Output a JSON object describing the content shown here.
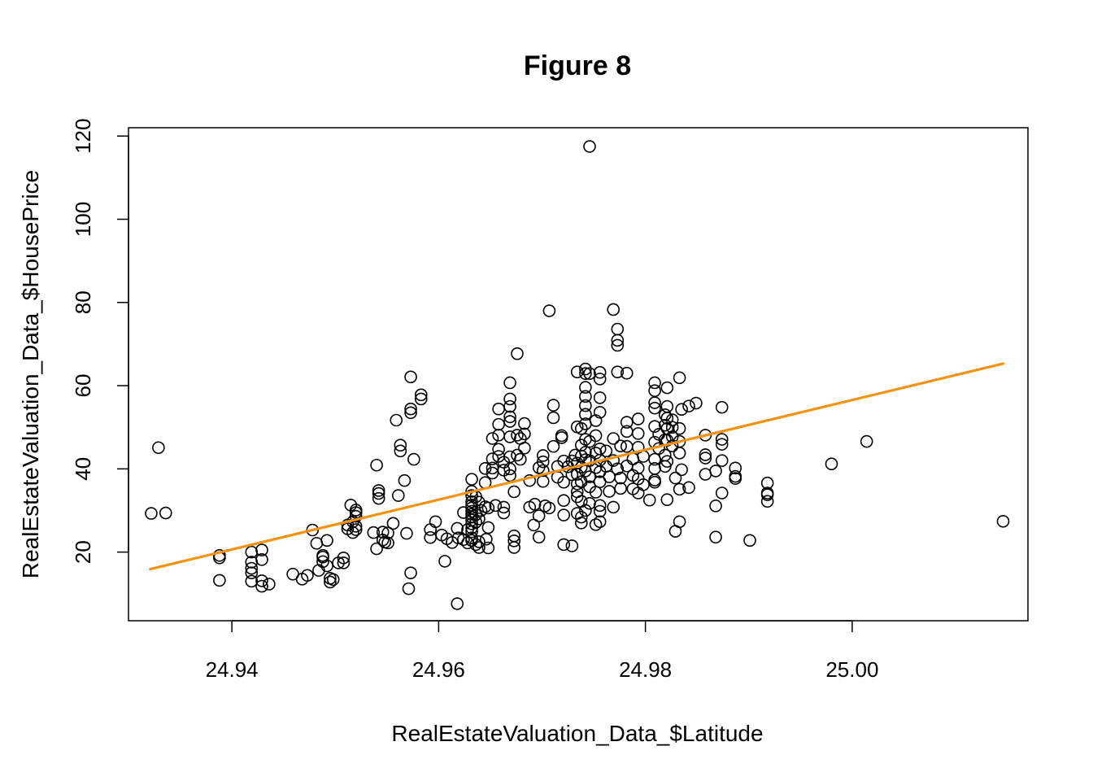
{
  "chart_data": {
    "type": "scatter",
    "title": "Figure 8",
    "xlabel": "RealEstateValuation_Data_$Latitude",
    "ylabel": "RealEstateValuation_Data_$HousePrice",
    "xlim": [
      24.93,
      25.017
    ],
    "ylim": [
      3.5,
      122
    ],
    "xticks": [
      24.94,
      24.96,
      24.98,
      25.0
    ],
    "xtick_labels": [
      "24.94",
      "24.96",
      "24.98",
      "25.00"
    ],
    "yticks": [
      20,
      40,
      60,
      80,
      100,
      120
    ],
    "ytick_labels": [
      "20",
      "40",
      "60",
      "80",
      "100",
      "120"
    ],
    "grid": false,
    "fit_line": {
      "x": [
        24.9321,
        25.0146
      ],
      "y": [
        15.9,
        65.3
      ],
      "color": "#f5930f"
    },
    "marker_color": "#000000",
    "points": [
      [
        24.9322,
        29.3
      ],
      [
        24.9329,
        45.1
      ],
      [
        24.9336,
        29.4
      ],
      [
        24.9388,
        19.2
      ],
      [
        24.9388,
        18.6
      ],
      [
        24.9388,
        13.2
      ],
      [
        24.9419,
        20.0
      ],
      [
        24.9419,
        17.6
      ],
      [
        24.9419,
        16.1
      ],
      [
        24.9419,
        15.0
      ],
      [
        24.9419,
        13.0
      ],
      [
        24.9429,
        20.5
      ],
      [
        24.9429,
        18.2
      ],
      [
        24.9429,
        13.1
      ],
      [
        24.9429,
        11.8
      ],
      [
        24.9436,
        12.3
      ],
      [
        24.9459,
        14.7
      ],
      [
        24.9468,
        13.5
      ],
      [
        24.9473,
        14.4
      ],
      [
        24.9478,
        25.3
      ],
      [
        24.9482,
        22.1
      ],
      [
        24.9484,
        15.6
      ],
      [
        24.9488,
        19.2
      ],
      [
        24.9488,
        18.8
      ],
      [
        24.9488,
        17.7
      ],
      [
        24.9492,
        22.8
      ],
      [
        24.9492,
        16.7
      ],
      [
        24.9495,
        13.7
      ],
      [
        24.9495,
        12.8
      ],
      [
        24.9498,
        13.4
      ],
      [
        24.9503,
        17.4
      ],
      [
        24.9508,
        18.6
      ],
      [
        24.9508,
        17.4
      ],
      [
        24.9512,
        26.5
      ],
      [
        24.9512,
        25.6
      ],
      [
        24.9515,
        31.3
      ],
      [
        24.9517,
        27.3
      ],
      [
        24.9517,
        24.7
      ],
      [
        24.952,
        30.1
      ],
      [
        24.952,
        29.5
      ],
      [
        24.952,
        28.6
      ],
      [
        24.952,
        26.2
      ],
      [
        24.952,
        25.4
      ],
      [
        24.9537,
        24.7
      ],
      [
        24.954,
        40.9
      ],
      [
        24.954,
        20.8
      ],
      [
        24.9542,
        34.8
      ],
      [
        24.9542,
        34.1
      ],
      [
        24.9542,
        32.9
      ],
      [
        24.9546,
        24.8
      ],
      [
        24.9546,
        22.9
      ],
      [
        24.9548,
        22.4
      ],
      [
        24.9551,
        22.2
      ],
      [
        24.9551,
        24.6
      ],
      [
        24.9556,
        26.9
      ],
      [
        24.9559,
        51.7
      ],
      [
        24.9561,
        33.6
      ],
      [
        24.9563,
        45.7
      ],
      [
        24.9563,
        44.3
      ],
      [
        24.9567,
        37.2
      ],
      [
        24.9569,
        24.5
      ],
      [
        24.9573,
        53.5
      ],
      [
        24.9573,
        54.4
      ],
      [
        24.9573,
        62.1
      ],
      [
        24.9573,
        15.0
      ],
      [
        24.9571,
        11.2
      ],
      [
        24.9576,
        42.3
      ],
      [
        24.9583,
        57.8
      ],
      [
        24.9583,
        56.8
      ],
      [
        24.9592,
        25.4
      ],
      [
        24.9592,
        23.5
      ],
      [
        24.9597,
        27.3
      ],
      [
        24.9603,
        24.1
      ],
      [
        24.9606,
        17.8
      ],
      [
        24.9608,
        23.2
      ],
      [
        24.9613,
        22.3
      ],
      [
        24.9618,
        25.7
      ],
      [
        24.9618,
        7.6
      ],
      [
        24.9619,
        23.4
      ],
      [
        24.9624,
        29.5
      ],
      [
        24.9624,
        23.0
      ],
      [
        24.9628,
        25.4
      ],
      [
        24.9628,
        22.2
      ],
      [
        24.9632,
        37.5
      ],
      [
        24.9632,
        34.6
      ],
      [
        24.9632,
        33.6
      ],
      [
        24.9632,
        32.1
      ],
      [
        24.9632,
        31.3
      ],
      [
        24.9632,
        30.6
      ],
      [
        24.9632,
        29.8
      ],
      [
        24.9632,
        29.1
      ],
      [
        24.9632,
        28.4
      ],
      [
        24.9632,
        27.7
      ],
      [
        24.9632,
        26.8
      ],
      [
        24.9632,
        25.8
      ],
      [
        24.9632,
        24.9
      ],
      [
        24.9632,
        23.4
      ],
      [
        24.9632,
        22.8
      ],
      [
        24.9636,
        33.3
      ],
      [
        24.9636,
        29.0
      ],
      [
        24.9636,
        27.2
      ],
      [
        24.9636,
        21.8
      ],
      [
        24.9639,
        32.0
      ],
      [
        24.9639,
        28.0
      ],
      [
        24.9639,
        22.5
      ],
      [
        24.9639,
        21.1
      ],
      [
        24.9641,
        30.0
      ],
      [
        24.9645,
        40.1
      ],
      [
        24.9645,
        36.7
      ],
      [
        24.9645,
        30.9
      ],
      [
        24.9648,
        30.6
      ],
      [
        24.9648,
        25.9
      ],
      [
        24.9646,
        23.1
      ],
      [
        24.9648,
        21.0
      ],
      [
        24.9652,
        47.3
      ],
      [
        24.9652,
        42.4
      ],
      [
        24.9652,
        40.2
      ],
      [
        24.9652,
        39.0
      ],
      [
        24.9655,
        31.2
      ],
      [
        24.9658,
        54.4
      ],
      [
        24.9658,
        50.7
      ],
      [
        24.9658,
        48.1
      ],
      [
        24.9658,
        44.7
      ],
      [
        24.9658,
        43.0
      ],
      [
        24.9663,
        41.6
      ],
      [
        24.9663,
        39.7
      ],
      [
        24.9663,
        30.8
      ],
      [
        24.9663,
        29.4
      ],
      [
        24.9669,
        60.7
      ],
      [
        24.9669,
        56.8
      ],
      [
        24.9669,
        55.0
      ],
      [
        24.9669,
        52.5
      ],
      [
        24.9669,
        51.4
      ],
      [
        24.9669,
        47.7
      ],
      [
        24.9669,
        42.9
      ],
      [
        24.9669,
        40.0
      ],
      [
        24.9669,
        38.4
      ],
      [
        24.9673,
        34.5
      ],
      [
        24.9673,
        23.9
      ],
      [
        24.9673,
        22.7
      ],
      [
        24.9673,
        21.1
      ],
      [
        24.9676,
        67.7
      ],
      [
        24.9676,
        48.1
      ],
      [
        24.9676,
        43.3
      ],
      [
        24.9679,
        47.3
      ],
      [
        24.9679,
        42.3
      ],
      [
        24.9683,
        50.9
      ],
      [
        24.9683,
        48.4
      ],
      [
        24.9683,
        45.0
      ],
      [
        24.9688,
        37.2
      ],
      [
        24.9688,
        30.8
      ],
      [
        24.9692,
        26.5
      ],
      [
        24.9693,
        31.5
      ],
      [
        24.9697,
        40.3
      ],
      [
        24.9697,
        28.7
      ],
      [
        24.9697,
        23.6
      ],
      [
        24.9701,
        43.2
      ],
      [
        24.9701,
        41.7
      ],
      [
        24.9701,
        39.6
      ],
      [
        24.9701,
        37.0
      ],
      [
        24.9703,
        31.1
      ],
      [
        24.9707,
        78.0
      ],
      [
        24.9707,
        30.6
      ],
      [
        24.9711,
        55.3
      ],
      [
        24.9711,
        52.3
      ],
      [
        24.9711,
        45.4
      ],
      [
        24.9715,
        40.6
      ],
      [
        24.9715,
        38.0
      ],
      [
        24.9719,
        48.0
      ],
      [
        24.9719,
        47.5
      ],
      [
        24.9721,
        41.9
      ],
      [
        24.9721,
        36.8
      ],
      [
        24.9721,
        32.4
      ],
      [
        24.9721,
        28.9
      ],
      [
        24.9721,
        21.8
      ],
      [
        24.9725,
        40.5
      ],
      [
        24.9729,
        41.9
      ],
      [
        24.9729,
        38.6
      ],
      [
        24.9729,
        21.5
      ],
      [
        24.9732,
        43.3
      ],
      [
        24.9734,
        63.3
      ],
      [
        24.9734,
        50.1
      ],
      [
        24.9734,
        41.4
      ],
      [
        24.9734,
        38.7
      ],
      [
        24.9734,
        36.4
      ],
      [
        24.9734,
        34.5
      ],
      [
        24.9734,
        33.3
      ],
      [
        24.9734,
        29.3
      ],
      [
        24.9738,
        49.7
      ],
      [
        24.9738,
        45.7
      ],
      [
        24.9738,
        43.1
      ],
      [
        24.9738,
        40.4
      ],
      [
        24.9738,
        36.9
      ],
      [
        24.9738,
        32.2
      ],
      [
        24.9738,
        28.4
      ],
      [
        24.9738,
        27.0
      ],
      [
        24.9742,
        64.0
      ],
      [
        24.9742,
        62.9
      ],
      [
        24.9742,
        59.6
      ],
      [
        24.9742,
        57.4
      ],
      [
        24.9742,
        55.2
      ],
      [
        24.9742,
        53.1
      ],
      [
        24.9742,
        50.8
      ],
      [
        24.9742,
        47.1
      ],
      [
        24.9742,
        44.0
      ],
      [
        24.9742,
        42.2
      ],
      [
        24.9742,
        39.5
      ],
      [
        24.9742,
        30.0
      ],
      [
        24.9746,
        117.5
      ],
      [
        24.9746,
        62.9
      ],
      [
        24.9746,
        46.6
      ],
      [
        24.9746,
        42.0
      ],
      [
        24.9746,
        38.1
      ],
      [
        24.9746,
        35.7
      ],
      [
        24.9746,
        31.7
      ],
      [
        24.9752,
        51.6
      ],
      [
        24.9752,
        48.0
      ],
      [
        24.9752,
        43.8
      ],
      [
        24.9752,
        40.3
      ],
      [
        24.9752,
        34.4
      ],
      [
        24.9752,
        26.6
      ],
      [
        24.9756,
        63.2
      ],
      [
        24.9756,
        61.6
      ],
      [
        24.9756,
        57.1
      ],
      [
        24.9756,
        53.6
      ],
      [
        24.9756,
        44.8
      ],
      [
        24.9756,
        42.1
      ],
      [
        24.9756,
        39.3
      ],
      [
        24.9756,
        36.9
      ],
      [
        24.9756,
        31.2
      ],
      [
        24.9756,
        29.8
      ],
      [
        24.9756,
        27.3
      ],
      [
        24.9762,
        44.3
      ],
      [
        24.9762,
        40.6
      ],
      [
        24.9765,
        38.1
      ],
      [
        24.9765,
        34.6
      ],
      [
        24.9769,
        78.3
      ],
      [
        24.9769,
        47.3
      ],
      [
        24.9769,
        42.0
      ],
      [
        24.9769,
        30.8
      ],
      [
        24.9773,
        73.6
      ],
      [
        24.9773,
        70.9
      ],
      [
        24.9773,
        69.7
      ],
      [
        24.9773,
        63.3
      ],
      [
        24.9773,
        40.0
      ],
      [
        24.9776,
        45.5
      ],
      [
        24.9776,
        37.8
      ],
      [
        24.9776,
        35.3
      ],
      [
        24.9782,
        63.0
      ],
      [
        24.9782,
        51.2
      ],
      [
        24.9782,
        49.0
      ],
      [
        24.9782,
        45.4
      ],
      [
        24.9782,
        40.7
      ],
      [
        24.9788,
        42.4
      ],
      [
        24.9788,
        38.4
      ],
      [
        24.9788,
        35.2
      ],
      [
        24.9793,
        52.0
      ],
      [
        24.9793,
        48.5
      ],
      [
        24.9793,
        45.2
      ],
      [
        24.9793,
        40.2
      ],
      [
        24.9793,
        37.6
      ],
      [
        24.9793,
        34.2
      ],
      [
        24.9798,
        43.0
      ],
      [
        24.9798,
        36.2
      ],
      [
        24.9804,
        32.5
      ],
      [
        24.9809,
        60.7
      ],
      [
        24.9809,
        58.8
      ],
      [
        24.9809,
        55.9
      ],
      [
        24.9809,
        54.6
      ],
      [
        24.9809,
        50.2
      ],
      [
        24.9809,
        46.4
      ],
      [
        24.9809,
        42.3
      ],
      [
        24.9809,
        40.1
      ],
      [
        24.9809,
        37.3
      ],
      [
        24.9809,
        36.8
      ],
      [
        24.9813,
        48.3
      ],
      [
        24.9813,
        44.9
      ],
      [
        24.9819,
        53.0
      ],
      [
        24.9819,
        50.5
      ],
      [
        24.9819,
        47.0
      ],
      [
        24.9819,
        43.3
      ],
      [
        24.9819,
        40.6
      ],
      [
        24.9821,
        59.5
      ],
      [
        24.9821,
        55.0
      ],
      [
        24.9821,
        52.2
      ],
      [
        24.9821,
        49.7
      ],
      [
        24.9821,
        46.9
      ],
      [
        24.9821,
        41.8
      ],
      [
        24.9821,
        32.6
      ],
      [
        24.9826,
        51.8
      ],
      [
        24.9826,
        50.0
      ],
      [
        24.9826,
        47.7
      ],
      [
        24.9826,
        45.5
      ],
      [
        24.9829,
        37.8
      ],
      [
        24.9829,
        25.0
      ],
      [
        24.9833,
        61.9
      ],
      [
        24.9833,
        49.7
      ],
      [
        24.9833,
        46.6
      ],
      [
        24.9833,
        43.8
      ],
      [
        24.9833,
        27.3
      ],
      [
        24.9835,
        54.3
      ],
      [
        24.9835,
        39.8
      ],
      [
        24.9833,
        35.1
      ],
      [
        24.9842,
        55.1
      ],
      [
        24.9842,
        35.5
      ],
      [
        24.9849,
        55.8
      ],
      [
        24.9858,
        48.1
      ],
      [
        24.9858,
        43.4
      ],
      [
        24.9858,
        42.6
      ],
      [
        24.9858,
        38.7
      ],
      [
        24.9868,
        39.5
      ],
      [
        24.9868,
        31.1
      ],
      [
        24.9868,
        23.6
      ],
      [
        24.9874,
        54.8
      ],
      [
        24.9874,
        47.1
      ],
      [
        24.9874,
        45.9
      ],
      [
        24.9874,
        42.0
      ],
      [
        24.9874,
        34.2
      ],
      [
        24.9887,
        40.2
      ],
      [
        24.9887,
        38.2
      ],
      [
        24.9887,
        37.7
      ],
      [
        24.9901,
        22.8
      ],
      [
        24.9918,
        36.6
      ],
      [
        24.9918,
        34.2
      ],
      [
        24.9918,
        33.8
      ],
      [
        24.9918,
        32.2
      ],
      [
        24.998,
        41.2
      ],
      [
        25.0014,
        46.6
      ],
      [
        25.0146,
        27.4
      ]
    ]
  }
}
